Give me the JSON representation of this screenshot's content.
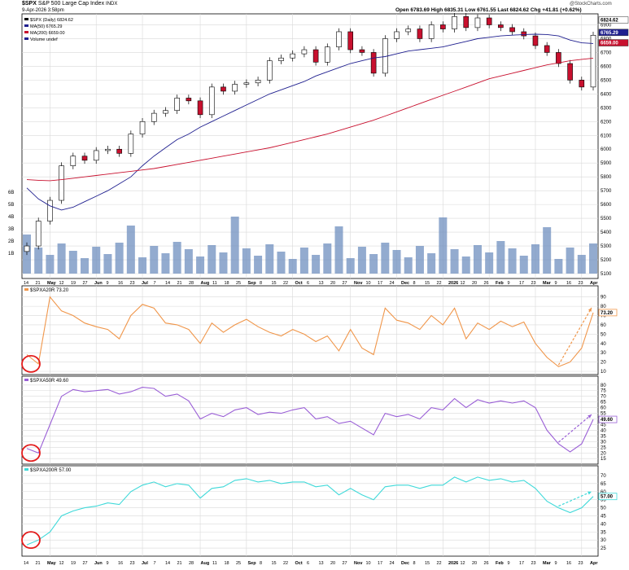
{
  "header": {
    "symbol": "$SPX",
    "name": "S&P 500 Large Cap Index",
    "exchange": "INDX",
    "date": "9-Apr-2026 3:58pm",
    "ohlc": "Open 6783.69   High 6835.31   Low 6761.55   Last 6824.62   Chg +41.81 (+0.62%)",
    "watermark": "@StockCharts.com"
  },
  "legend": {
    "price": "$SPX (Daily) 6824.62",
    "ma50": "MA(50) 6765.29",
    "ma200": "MA(200) 6659.00",
    "volume": "Volume undef"
  },
  "price_badges": {
    "last": "6824.62",
    "ma50": "6765.29",
    "ma200": "6659.00"
  },
  "x_labels": [
    "14",
    "21",
    "May",
    "12",
    "19",
    "27",
    "Jun",
    "9",
    "16",
    "23",
    "Jul",
    "7",
    "14",
    "21",
    "28",
    "Aug",
    "11",
    "18",
    "25",
    "Sep",
    "8",
    "15",
    "22",
    "Oct",
    "6",
    "13",
    "20",
    "27",
    "Nov",
    "10",
    "17",
    "24",
    "Dec",
    "8",
    "15",
    "22",
    "2026",
    "12",
    "20",
    "26",
    "Feb",
    "9",
    "17",
    "23",
    "Mar",
    "9",
    "16",
    "23",
    "Apr"
  ],
  "panels": {
    "price": {
      "title": "",
      "y_ticks": [
        "6900",
        "6800",
        "6700",
        "6600",
        "6500",
        "6400",
        "6300",
        "6200",
        "6100",
        "6000",
        "5900",
        "5800",
        "5700",
        "5600",
        "5500",
        "5400",
        "5300",
        "5200",
        "5100"
      ],
      "vol_ticks": [
        "6B",
        "5B",
        "4B",
        "3B",
        "2B",
        "1B"
      ]
    },
    "a20": {
      "title": "$SPXA20R 73.20",
      "badge": "73.20",
      "y_ticks": [
        "90",
        "80",
        "70",
        "60",
        "50",
        "40",
        "30",
        "20",
        "10"
      ]
    },
    "a50": {
      "title": "$SPXA50R 49.60",
      "badge": "49.60",
      "y_ticks": [
        "80",
        "75",
        "70",
        "65",
        "60",
        "55",
        "50",
        "45",
        "40",
        "35",
        "30",
        "25",
        "20",
        "15"
      ]
    },
    "a200": {
      "title": "$SPXA200R 57.00",
      "badge": "57.00",
      "y_ticks": [
        "70",
        "65",
        "60",
        "55",
        "50",
        "45",
        "40",
        "35",
        "30",
        "25"
      ]
    }
  },
  "chart_data": [
    {
      "type": "line",
      "title": "$SPX (Daily) 6824.62",
      "note": "Approximate closes (candlestick chart with volume), read from the chart",
      "x": [
        "2025-04-14",
        "2025-04-21",
        "2025-05-01",
        "2025-05-12",
        "2025-05-19",
        "2025-05-27",
        "2025-06-02",
        "2025-06-09",
        "2025-06-16",
        "2025-06-23",
        "2025-07-01",
        "2025-07-07",
        "2025-07-14",
        "2025-07-21",
        "2025-07-28",
        "2025-08-04",
        "2025-08-11",
        "2025-08-18",
        "2025-08-25",
        "2025-09-02",
        "2025-09-08",
        "2025-09-15",
        "2025-09-22",
        "2025-10-01",
        "2025-10-06",
        "2025-10-13",
        "2025-10-20",
        "2025-10-27",
        "2025-11-03",
        "2025-11-10",
        "2025-11-17",
        "2025-11-24",
        "2025-12-01",
        "2025-12-08",
        "2025-12-15",
        "2025-12-22",
        "2026-01-02",
        "2026-01-12",
        "2026-01-20",
        "2026-01-26",
        "2026-02-02",
        "2026-02-09",
        "2026-02-17",
        "2026-02-23",
        "2026-03-02",
        "2026-03-09",
        "2026-03-16",
        "2026-03-23",
        "2026-03-30",
        "2026-04-09"
      ],
      "series": [
        {
          "name": "$SPX",
          "values": [
            5300,
            5480,
            5630,
            5880,
            5950,
            5920,
            5990,
            6000,
            5970,
            6110,
            6200,
            6260,
            6280,
            6370,
            6350,
            6250,
            6450,
            6420,
            6470,
            6480,
            6500,
            6640,
            6660,
            6690,
            6720,
            6630,
            6740,
            6850,
            6720,
            6700,
            6550,
            6800,
            6850,
            6870,
            6800,
            6900,
            6870,
            6960,
            6880,
            6950,
            6900,
            6880,
            6850,
            6820,
            6750,
            6700,
            6620,
            6500,
            6450,
            6824.62
          ]
        },
        {
          "name": "MA(50)",
          "values": [
            5720,
            5640,
            5590,
            5560,
            5580,
            5620,
            5660,
            5700,
            5750,
            5800,
            5880,
            5950,
            6010,
            6070,
            6110,
            6160,
            6200,
            6240,
            6280,
            6320,
            6360,
            6400,
            6430,
            6460,
            6490,
            6530,
            6560,
            6590,
            6620,
            6640,
            6660,
            6670,
            6690,
            6710,
            6720,
            6730,
            6740,
            6760,
            6780,
            6800,
            6810,
            6820,
            6825,
            6830,
            6832,
            6830,
            6820,
            6790,
            6770,
            6765.29
          ]
        },
        {
          "name": "MA(200)",
          "values": [
            5780,
            5775,
            5772,
            5780,
            5790,
            5800,
            5810,
            5820,
            5830,
            5840,
            5850,
            5860,
            5875,
            5890,
            5905,
            5920,
            5935,
            5950,
            5965,
            5980,
            5995,
            6010,
            6030,
            6050,
            6070,
            6090,
            6110,
            6135,
            6160,
            6185,
            6210,
            6240,
            6270,
            6300,
            6330,
            6360,
            6390,
            6420,
            6450,
            6480,
            6510,
            6530,
            6550,
            6570,
            6590,
            6610,
            6625,
            6640,
            6650,
            6659.0
          ]
        }
      ],
      "ylim": [
        5100,
        6950
      ],
      "volume_axis": "1B-6B",
      "legend": "top-left"
    },
    {
      "type": "line",
      "title": "$SPXA20R 73.20",
      "x": [
        "2025-04-14",
        "2025-04-21",
        "2025-05-01",
        "2025-05-12",
        "2025-05-19",
        "2025-05-27",
        "2025-06-02",
        "2025-06-09",
        "2025-06-16",
        "2025-06-23",
        "2025-07-01",
        "2025-07-07",
        "2025-07-14",
        "2025-07-21",
        "2025-07-28",
        "2025-08-04",
        "2025-08-11",
        "2025-08-18",
        "2025-08-25",
        "2025-09-02",
        "2025-09-08",
        "2025-09-15",
        "2025-09-22",
        "2025-10-01",
        "2025-10-06",
        "2025-10-13",
        "2025-10-20",
        "2025-10-27",
        "2025-11-03",
        "2025-11-10",
        "2025-11-17",
        "2025-11-24",
        "2025-12-01",
        "2025-12-08",
        "2025-12-15",
        "2025-12-22",
        "2026-01-02",
        "2026-01-12",
        "2026-01-20",
        "2026-01-26",
        "2026-02-02",
        "2026-02-09",
        "2026-02-17",
        "2026-02-23",
        "2026-03-02",
        "2026-03-09",
        "2026-03-16",
        "2026-03-23",
        "2026-03-30",
        "2026-04-09"
      ],
      "series": [
        {
          "name": "$SPXA20R",
          "values": [
            28,
            18,
            90,
            75,
            70,
            62,
            58,
            55,
            45,
            70,
            82,
            78,
            62,
            60,
            55,
            40,
            62,
            52,
            60,
            66,
            58,
            52,
            48,
            55,
            50,
            42,
            48,
            32,
            55,
            35,
            28,
            78,
            65,
            62,
            55,
            70,
            60,
            78,
            45,
            62,
            55,
            64,
            58,
            63,
            40,
            25,
            15,
            20,
            35,
            73.2
          ]
        }
      ],
      "ylim": [
        10,
        95
      ]
    },
    {
      "type": "line",
      "title": "$SPXA50R 49.60",
      "x": [
        "2025-04-14",
        "2025-04-21",
        "2025-05-01",
        "2025-05-12",
        "2025-05-19",
        "2025-05-27",
        "2025-06-02",
        "2025-06-09",
        "2025-06-16",
        "2025-06-23",
        "2025-07-01",
        "2025-07-07",
        "2025-07-14",
        "2025-07-21",
        "2025-07-28",
        "2025-08-04",
        "2025-08-11",
        "2025-08-18",
        "2025-08-25",
        "2025-09-02",
        "2025-09-08",
        "2025-09-15",
        "2025-09-22",
        "2025-10-01",
        "2025-10-06",
        "2025-10-13",
        "2025-10-20",
        "2025-10-27",
        "2025-11-03",
        "2025-11-10",
        "2025-11-17",
        "2025-11-24",
        "2025-12-01",
        "2025-12-08",
        "2025-12-15",
        "2025-12-22",
        "2026-01-02",
        "2026-01-12",
        "2026-01-20",
        "2026-01-26",
        "2026-02-02",
        "2026-02-09",
        "2026-02-17",
        "2026-02-23",
        "2026-03-02",
        "2026-03-09",
        "2026-03-16",
        "2026-03-23",
        "2026-03-30",
        "2026-04-09"
      ],
      "series": [
        {
          "name": "$SPXA50R",
          "values": [
            24,
            20,
            45,
            70,
            76,
            74,
            75,
            76,
            72,
            74,
            78,
            77,
            70,
            72,
            66,
            50,
            55,
            52,
            58,
            60,
            54,
            56,
            55,
            58,
            60,
            50,
            52,
            46,
            48,
            42,
            36,
            55,
            52,
            54,
            50,
            60,
            58,
            68,
            60,
            67,
            64,
            66,
            64,
            66,
            60,
            40,
            28,
            21,
            28,
            49.6
          ]
        }
      ],
      "ylim": [
        13,
        82
      ]
    },
    {
      "type": "line",
      "title": "$SPXA200R 57.00",
      "x": [
        "2025-04-14",
        "2025-04-21",
        "2025-05-01",
        "2025-05-12",
        "2025-05-19",
        "2025-05-27",
        "2025-06-02",
        "2025-06-09",
        "2025-06-16",
        "2025-06-23",
        "2025-07-01",
        "2025-07-07",
        "2025-07-14",
        "2025-07-21",
        "2025-07-28",
        "2025-08-04",
        "2025-08-11",
        "2025-08-18",
        "2025-08-25",
        "2025-09-02",
        "2025-09-08",
        "2025-09-15",
        "2025-09-22",
        "2025-10-01",
        "2025-10-06",
        "2025-10-13",
        "2025-10-20",
        "2025-10-27",
        "2025-11-03",
        "2025-11-10",
        "2025-11-17",
        "2025-11-24",
        "2025-12-01",
        "2025-12-08",
        "2025-12-15",
        "2025-12-22",
        "2026-01-02",
        "2026-01-12",
        "2026-01-20",
        "2026-01-26",
        "2026-02-02",
        "2026-02-09",
        "2026-02-17",
        "2026-02-23",
        "2026-03-02",
        "2026-03-09",
        "2026-03-16",
        "2026-03-23",
        "2026-03-30",
        "2026-04-09"
      ],
      "series": [
        {
          "name": "$SPXA200R",
          "values": [
            27,
            30,
            35,
            45,
            48,
            50,
            51,
            53,
            52,
            60,
            64,
            66,
            63,
            65,
            64,
            56,
            62,
            63,
            67,
            68,
            66,
            67,
            65,
            66,
            66,
            63,
            64,
            58,
            62,
            58,
            55,
            63,
            64,
            64,
            62,
            64,
            64,
            69,
            66,
            69,
            67,
            68,
            66,
            67,
            62,
            54,
            50,
            47,
            50,
            57.0
          ]
        }
      ],
      "ylim": [
        22,
        72
      ]
    }
  ],
  "colors": {
    "grid": "#d9d9d9",
    "ma50": "#1f1f8f",
    "ma200": "#c8102e",
    "up_candle": "#ffffff",
    "down_candle": "#c8102e",
    "volume": "#6f8fbf",
    "a20": "#f0964a",
    "a50": "#9a5fd6",
    "a200": "#3fd9d9",
    "circle": "#e31b1b"
  }
}
